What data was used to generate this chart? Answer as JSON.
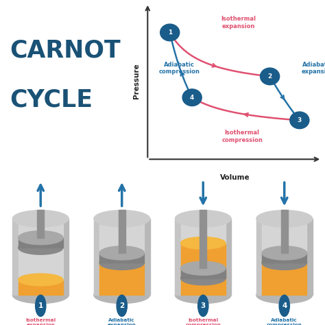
{
  "title_line1": "CARNOT",
  "title_line2": "CYCLE",
  "title_color": "#1a5276",
  "bg_color": "#ffffff",
  "graph": {
    "point1": [
      0.18,
      0.82
    ],
    "point2": [
      0.72,
      0.55
    ],
    "point3": [
      0.88,
      0.28
    ],
    "point4": [
      0.3,
      0.42
    ],
    "isothermal_expansion_color": "#e05070",
    "adiabatic_expansion_color": "#2473a8",
    "isothermal_compression_color": "#e05070",
    "adiabatic_compression_color": "#2473a8",
    "label_isothermal_exp": "Isothermal\nexpansion",
    "label_adiabatic_exp": "Adiabatic\nexpansion",
    "label_isothermal_comp": "Isothermal\ncompression",
    "label_adiabatic_comp": "Adiabatic\ncompression",
    "xlabel": "Volume",
    "ylabel": "Pressure"
  },
  "fill_color": "#f0a030",
  "fill_color_top": "#f5b840",
  "arrow_color": "#2473a8",
  "number_bg_color": "#1a5c8a",
  "number_text_color": "#ffffff",
  "cyl_wall_color": "#c0c0c0",
  "cyl_inner_color": "#d8d8d8",
  "piston_color": "#888888",
  "piston_top_color": "#aaaaaa",
  "rod_color": "#909090"
}
